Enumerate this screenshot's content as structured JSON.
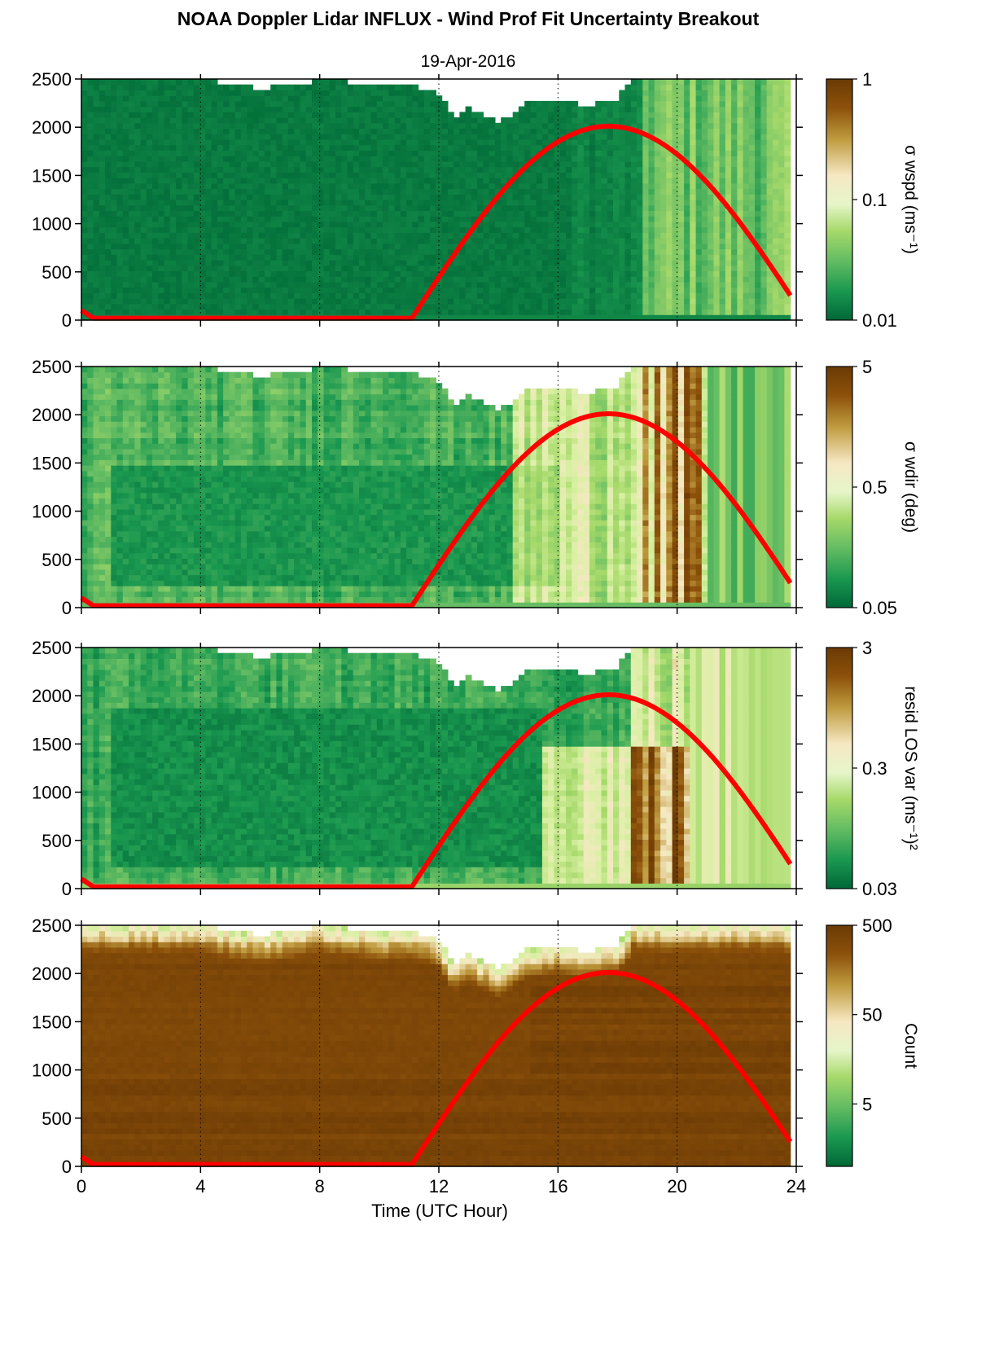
{
  "figure": {
    "title": "NOAA Doppler Lidar INFLUX - Wind Prof Fit Uncertainty Breakout",
    "subtitle": "19-Apr-2016",
    "xlabel": "Time (UTC Hour)"
  },
  "chart_data": [
    {
      "type": "heatmap",
      "panel": "wspd",
      "colorbar_label": "σ wspd (ms⁻¹)",
      "colorbar_ticks": [
        "1",
        "0.1",
        "0.01"
      ],
      "colorbar_range": [
        0.01,
        1
      ],
      "colorbar_scale": "log",
      "background_level": 0.0,
      "x": [
        0,
        4,
        8,
        12,
        16,
        20,
        24
      ],
      "xlim": [
        0,
        24
      ],
      "y": [
        0,
        500,
        1000,
        1500,
        2000,
        2500
      ],
      "ylim": [
        0,
        2500
      ],
      "grid": "dotted vertical at 4 h intervals",
      "overlay": "red solar elevation curve, peak near 2000 m at ~17.7 h"
    },
    {
      "type": "heatmap",
      "panel": "wdir",
      "colorbar_label": "σ wdir (deg)",
      "colorbar_ticks": [
        "5",
        "0.5",
        "0.05"
      ],
      "colorbar_range": [
        0.05,
        5
      ],
      "colorbar_scale": "log",
      "background_level": 0.15,
      "x": [
        0,
        4,
        8,
        12,
        16,
        20,
        24
      ],
      "xlim": [
        0,
        24
      ],
      "y": [
        0,
        500,
        1000,
        1500,
        2000,
        2500
      ],
      "ylim": [
        0,
        2500
      ],
      "grid": "dotted vertical at 4 h intervals",
      "overlay": "red solar elevation curve, peak near 2000 m at ~17.7 h"
    },
    {
      "type": "heatmap",
      "panel": "resid",
      "colorbar_label": "resid LOS var (ms⁻¹)²",
      "colorbar_ticks": [
        "3",
        "0.3",
        "0.03"
      ],
      "colorbar_range": [
        0.03,
        3
      ],
      "colorbar_scale": "log",
      "background_level": 0.15,
      "x": [
        0,
        4,
        8,
        12,
        16,
        20,
        24
      ],
      "xlim": [
        0,
        24
      ],
      "y": [
        0,
        500,
        1000,
        1500,
        2000,
        2500
      ],
      "ylim": [
        0,
        2500
      ],
      "grid": "dotted vertical at 4 h intervals",
      "overlay": "red solar elevation curve, peak near 2000 m at ~17.7 h"
    },
    {
      "type": "heatmap",
      "panel": "count",
      "colorbar_label": "Count",
      "colorbar_ticks": [
        "500",
        "50",
        "5"
      ],
      "colorbar_range": [
        1,
        500
      ],
      "colorbar_scale": "log",
      "background_level": 0.95,
      "x": [
        0,
        4,
        8,
        12,
        16,
        20,
        24
      ],
      "xlim": [
        0,
        24
      ],
      "y": [
        0,
        500,
        1000,
        1500,
        2000,
        2500
      ],
      "ylim": [
        0,
        2500
      ],
      "grid": "dotted vertical at 4 h intervals",
      "overlay": "red solar elevation curve, peak near 2000 m at ~17.7 h"
    }
  ],
  "colormap": [
    "#006837",
    "#1a9850",
    "#66bd63",
    "#a6d96a",
    "#d9f0a3",
    "#f6e8c3",
    "#bf9b3f",
    "#8c510a",
    "#6b3a05"
  ],
  "solar_curve": {
    "color": "#ff0000",
    "night_start_hour": 0,
    "night_start_height": 100,
    "rise_hour": 11.1,
    "peak_hour": 17.7,
    "peak_height": 2010,
    "end_hour": 23.8,
    "end_height": 300
  },
  "data_top_boundary": {
    "hours": [
      0,
      4,
      4.5,
      5.5,
      6,
      7,
      8,
      9,
      10,
      11,
      12,
      12.5,
      13,
      14,
      15,
      16,
      17,
      18,
      18.5,
      19,
      23.8
    ],
    "heights": [
      2500,
      2500,
      2470,
      2430,
      2400,
      2450,
      2480,
      2470,
      2420,
      2450,
      2350,
      2100,
      2200,
      2050,
      2250,
      2280,
      2230,
      2300,
      2500,
      2500,
      2500
    ]
  }
}
